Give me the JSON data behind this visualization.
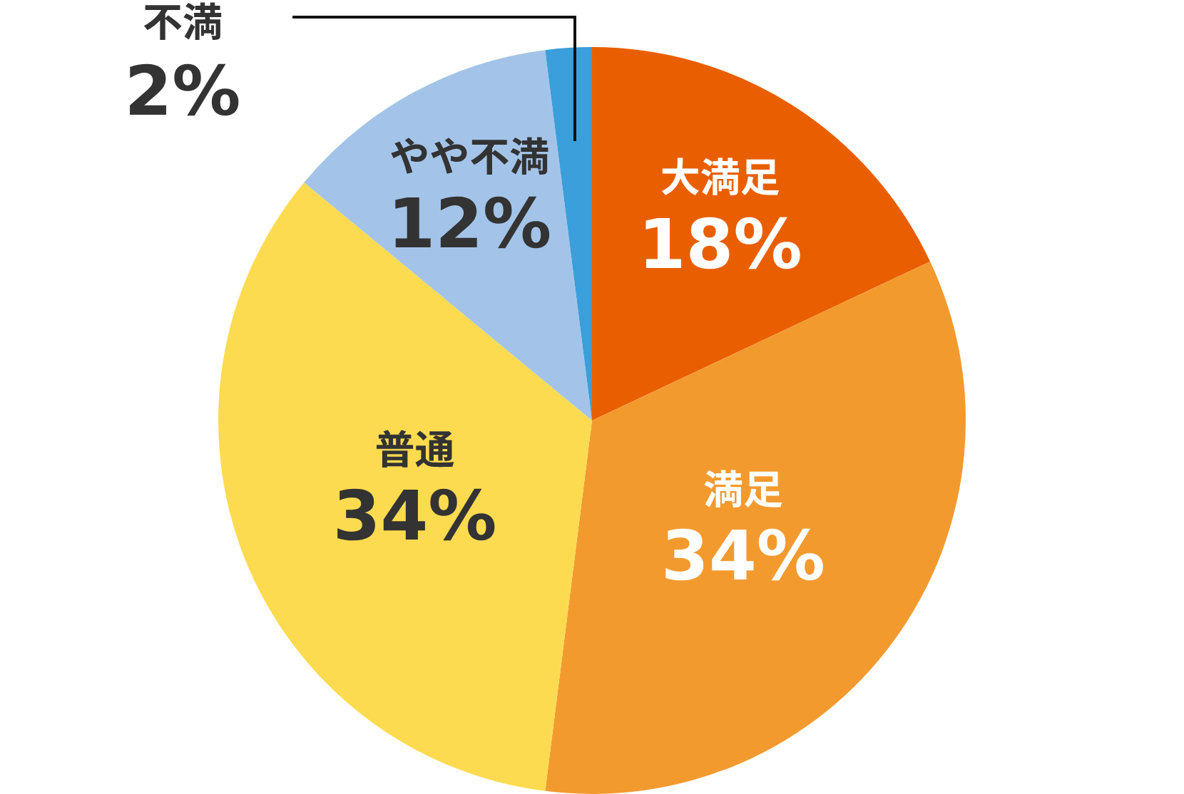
{
  "chart_data": {
    "type": "pie",
    "categories": [
      "大満足",
      "満足",
      "普通",
      "やや不満",
      "不満"
    ],
    "values": [
      18,
      34,
      34,
      12,
      2
    ],
    "value_labels": [
      "18%",
      "34%",
      "34%",
      "12%",
      "2%"
    ],
    "colors": [
      "#e95f00",
      "#f39a2f",
      "#fddb50",
      "#a3c4e8",
      "#3a9fdb"
    ],
    "legend": false
  }
}
